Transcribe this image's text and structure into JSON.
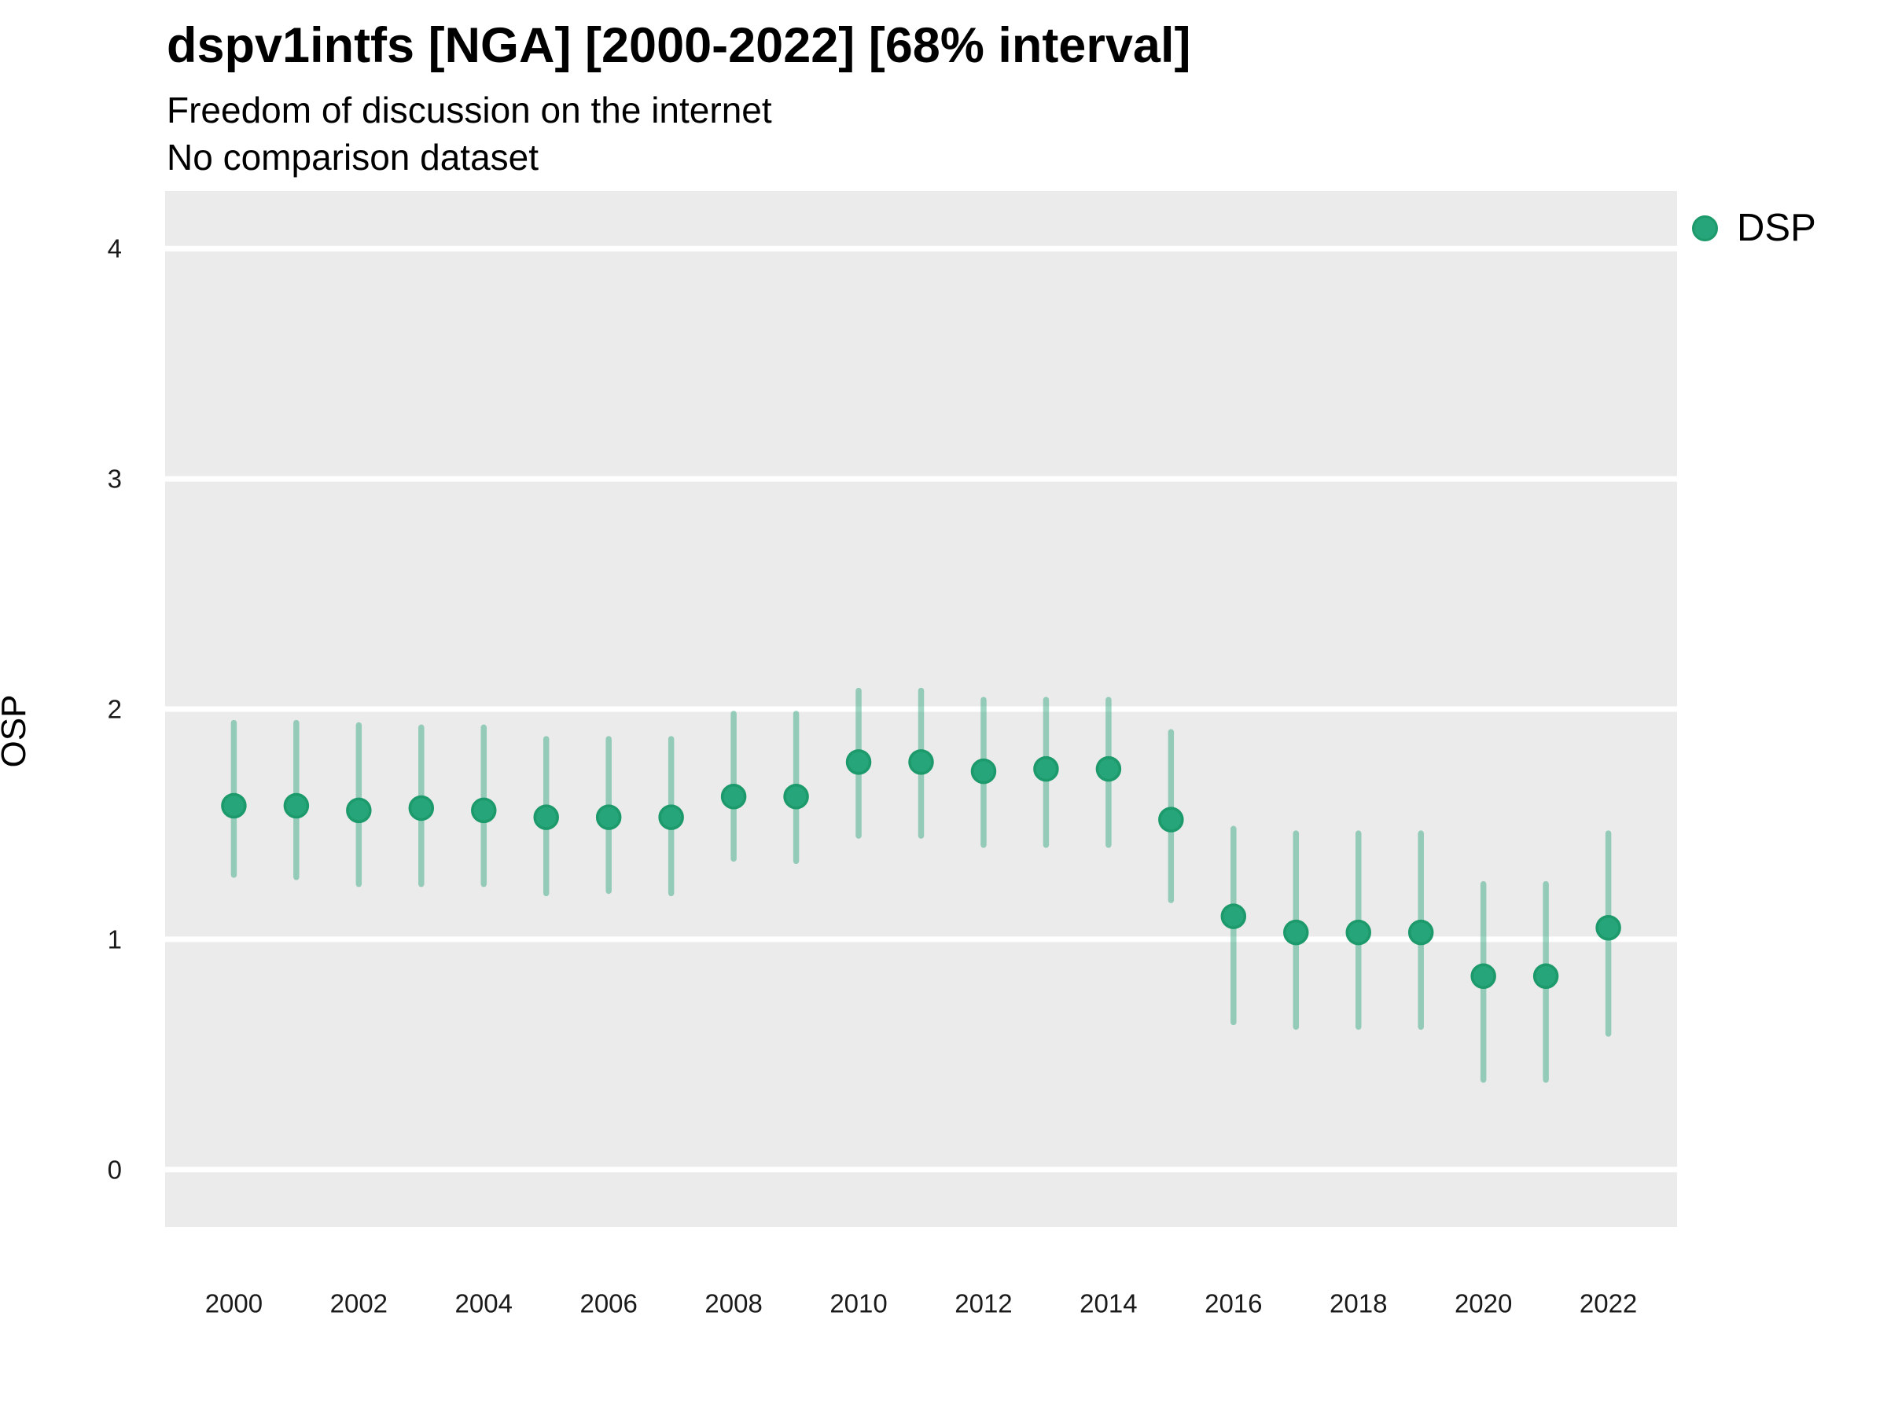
{
  "header": {
    "title": "dspv1intfs [NGA] [2000-2022] [68% interval]",
    "subtitle": "Freedom of discussion on the internet",
    "note": "No comparison dataset"
  },
  "legend": {
    "label": "DSP"
  },
  "axes": {
    "y_label": "OSP",
    "y_ticks": [
      0,
      1,
      2,
      3,
      4
    ],
    "x_ticks": [
      2000,
      2002,
      2004,
      2006,
      2008,
      2010,
      2012,
      2014,
      2016,
      2018,
      2020,
      2022
    ]
  },
  "colors": {
    "point_fill": "#27a57a",
    "point_stroke": "#1d9a6c",
    "interval_line": "rgba(39,165,122,0.45)",
    "panel_bg": "#ebebeb",
    "gridline": "#ffffff",
    "axis_text": "#1a1a1a",
    "text": "#000000"
  },
  "chart_data": {
    "type": "scatter",
    "subtype": "pointrange",
    "title": "dspv1intfs [NGA] [2000-2022] [68% interval]",
    "subtitle": "Freedom of discussion on the internet",
    "note": "No comparison dataset",
    "interval": "68%",
    "xlabel": "",
    "ylabel": "OSP",
    "legend_position": "right-top",
    "grid": "major-y-only",
    "xlim": [
      1998.9,
      2023.1
    ],
    "ylim": [
      -0.25,
      4.25
    ],
    "x_ticks": [
      2000,
      2002,
      2004,
      2006,
      2008,
      2010,
      2012,
      2014,
      2016,
      2018,
      2020,
      2022
    ],
    "y_ticks": [
      0,
      1,
      2,
      3,
      4
    ],
    "x": [
      2000,
      2001,
      2002,
      2003,
      2004,
      2005,
      2006,
      2007,
      2008,
      2009,
      2010,
      2011,
      2012,
      2013,
      2014,
      2015,
      2016,
      2017,
      2018,
      2019,
      2020,
      2021,
      2022
    ],
    "series": [
      {
        "name": "DSP",
        "values": [
          1.58,
          1.58,
          1.56,
          1.57,
          1.56,
          1.53,
          1.53,
          1.53,
          1.62,
          1.62,
          1.77,
          1.77,
          1.73,
          1.74,
          1.74,
          1.52,
          1.1,
          1.03,
          1.03,
          1.03,
          0.84,
          0.84,
          1.05
        ],
        "lower": [
          1.28,
          1.27,
          1.24,
          1.24,
          1.24,
          1.2,
          1.21,
          1.2,
          1.35,
          1.34,
          1.45,
          1.45,
          1.41,
          1.41,
          1.41,
          1.17,
          0.64,
          0.62,
          0.62,
          0.62,
          0.39,
          0.39,
          0.59
        ],
        "upper": [
          1.94,
          1.94,
          1.93,
          1.92,
          1.92,
          1.87,
          1.87,
          1.87,
          1.98,
          1.98,
          2.08,
          2.08,
          2.04,
          2.04,
          2.04,
          1.9,
          1.48,
          1.46,
          1.46,
          1.46,
          1.24,
          1.24,
          1.46
        ]
      }
    ]
  }
}
